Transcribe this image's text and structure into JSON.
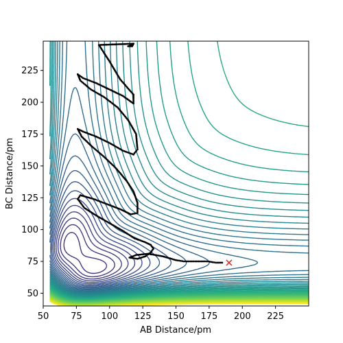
{
  "chart_data": {
    "type": "contour",
    "title": "",
    "xlabel": "AB Distance/pm",
    "ylabel": "BC Distance/pm",
    "xlim": [
      50,
      250
    ],
    "ylim": [
      40,
      248
    ],
    "xticks": [
      50,
      75,
      100,
      125,
      150,
      175,
      200,
      225
    ],
    "yticks": [
      50,
      75,
      100,
      125,
      150,
      175,
      200,
      225
    ],
    "colormap": "viridis",
    "grid": false,
    "legend": "none",
    "trajectory": {
      "color": "#000000",
      "points": [
        [
          117,
          245
        ],
        [
          114,
          244
        ],
        [
          117,
          244
        ],
        [
          118,
          246
        ],
        [
          92,
          245
        ],
        [
          100,
          232
        ],
        [
          108,
          218
        ],
        [
          118,
          206
        ],
        [
          118,
          199
        ],
        [
          110,
          205
        ],
        [
          100,
          210
        ],
        [
          90,
          215
        ],
        [
          80,
          219
        ],
        [
          76,
          222
        ],
        [
          78,
          217
        ],
        [
          86,
          210
        ],
        [
          96,
          204
        ],
        [
          106,
          196
        ],
        [
          114,
          186
        ],
        [
          120,
          175
        ],
        [
          121,
          163
        ],
        [
          118,
          159
        ],
        [
          110,
          162
        ],
        [
          100,
          168
        ],
        [
          90,
          173
        ],
        [
          80,
          177
        ],
        [
          76,
          179
        ],
        [
          79,
          173
        ],
        [
          87,
          165
        ],
        [
          96,
          157
        ],
        [
          105,
          148
        ],
        [
          113,
          138
        ],
        [
          118,
          130
        ],
        [
          121,
          121
        ],
        [
          121,
          113
        ],
        [
          116,
          112
        ],
        [
          108,
          116
        ],
        [
          98,
          120
        ],
        [
          88,
          124
        ],
        [
          78,
          127
        ],
        [
          76,
          124
        ],
        [
          81,
          117
        ],
        [
          90,
          111
        ],
        [
          100,
          105
        ],
        [
          110,
          99
        ],
        [
          119,
          93
        ],
        [
          127,
          90
        ],
        [
          131,
          88
        ],
        [
          133,
          85
        ],
        [
          131,
          82
        ],
        [
          127,
          79
        ],
        [
          121,
          77
        ],
        [
          115,
          78
        ],
        [
          120,
          80
        ],
        [
          129,
          81
        ],
        [
          140,
          79
        ],
        [
          150,
          76
        ],
        [
          156,
          75
        ],
        [
          162,
          75
        ],
        [
          168,
          75
        ],
        [
          174,
          75
        ],
        [
          180,
          74
        ],
        [
          186,
          74
        ]
      ]
    },
    "end_marker": {
      "x": 190,
      "y": 74,
      "symbol": "x",
      "color": "#d62728"
    }
  }
}
